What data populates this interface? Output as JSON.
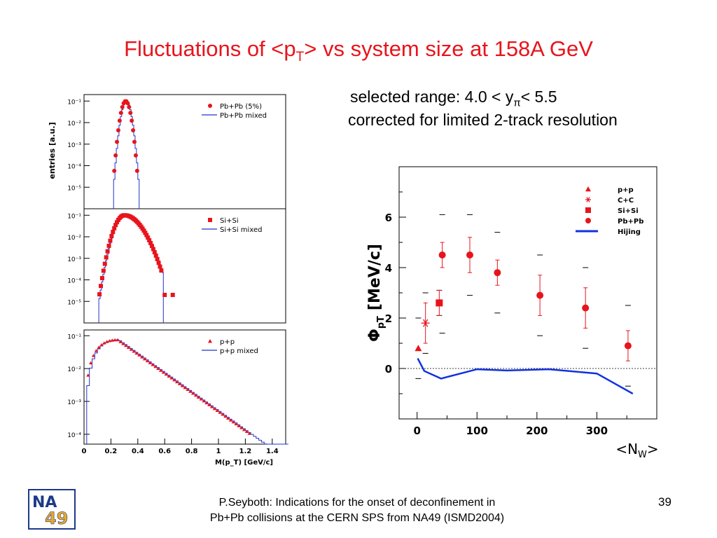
{
  "slide": {
    "title_main": "Fluctuations of <p",
    "title_sub": "T",
    "title_rest": "> vs system size at 158A GeV",
    "range_prefix": "selected range:  4.0 < y",
    "range_sub": "π",
    "range_suffix": "< 5.5",
    "correction_note": "corrected for limited 2-track resolution",
    "footer_line1": "P.Seyboth: Indications for the onset of deconfinement in",
    "footer_line2": "Pb+Pb collisions at the CERN SPS from NA49   (ISMD2004)",
    "page_number": "39",
    "logo_text_top": "NA",
    "logo_text_bottom": "49"
  },
  "colors": {
    "accent_red": "#e8141c",
    "hijing_blue": "#1133dd",
    "hist_blue": "#2233cc",
    "logo_blue": "#1d3a8a",
    "logo_gold": "#e6a92a"
  },
  "chart_data": [
    {
      "type": "scatter",
      "panel": "Pb+Pb",
      "ylabel": "entries [a.u.]",
      "yscale": "log",
      "ylim": [
        1e-06,
        0.2
      ],
      "xlim": [
        0,
        1.5
      ],
      "yticks": [
        "10⁻¹",
        "10⁻²",
        "10⁻³",
        "10⁻⁴",
        "10⁻⁵"
      ],
      "legend": [
        "Pb+Pb (5%)",
        "Pb+Pb mixed"
      ],
      "marker": "circle",
      "peak_x": 0.31,
      "sigma": 0.022
    },
    {
      "type": "scatter",
      "panel": "Si+Si",
      "yscale": "log",
      "ylim": [
        1e-06,
        0.2
      ],
      "xlim": [
        0,
        1.5
      ],
      "yticks": [
        "10⁻¹",
        "10⁻²",
        "10⁻³",
        "10⁻⁴",
        "10⁻⁵"
      ],
      "legend": [
        "Si+Si",
        "Si+Si mixed"
      ],
      "marker": "square",
      "peak_x": 0.3,
      "sigma": 0.05
    },
    {
      "type": "scatter",
      "panel": "p+p",
      "xlabel": "M(p_T) [GeV/c]",
      "yscale": "log",
      "ylim": [
        5e-05,
        0.15
      ],
      "xlim": [
        0,
        1.5
      ],
      "yticks": [
        "10⁻¹",
        "10⁻²",
        "10⁻³",
        "10⁻⁴"
      ],
      "xticks": [
        "0",
        "0.2",
        "0.4",
        "0.6",
        "0.8",
        "1",
        "1.2",
        "1.4"
      ],
      "legend": [
        "p+p",
        "p+p mixed"
      ],
      "marker": "triangle",
      "peak_x": 0.25
    },
    {
      "type": "scatter",
      "ylabel": "Φ",
      "ylabel_sub": "pT",
      "ylabel_unit": "[MeV/c]",
      "xlabel": "<N",
      "xlabel_sub": "W",
      "xlabel_close": ">",
      "xlim": [
        -30,
        400
      ],
      "ylim": [
        -2,
        8
      ],
      "xticks": [
        0,
        100,
        200,
        300
      ],
      "yticks": [
        0,
        2,
        4,
        6
      ],
      "legend_position": "top-right",
      "legend": [
        "p+p",
        "C+C",
        "Si+Si",
        "Pb+Pb",
        "Hijing"
      ],
      "series": [
        {
          "name": "p+p",
          "marker": "triangle",
          "points": [
            {
              "x": 2,
              "y": 0.8,
              "err": 0.0
            }
          ]
        },
        {
          "name": "C+C",
          "marker": "star",
          "points": [
            {
              "x": 14,
              "y": 1.8,
              "err": 0.8
            }
          ]
        },
        {
          "name": "Si+Si",
          "marker": "square",
          "points": [
            {
              "x": 37,
              "y": 2.6,
              "err": 0.5
            }
          ]
        },
        {
          "name": "Pb+Pb",
          "marker": "circle",
          "points": [
            {
              "x": 42,
              "y": 4.5,
              "err": 0.5
            },
            {
              "x": 88,
              "y": 4.5,
              "err": 0.7
            },
            {
              "x": 134,
              "y": 3.8,
              "err": 0.5
            },
            {
              "x": 205,
              "y": 2.9,
              "err": 0.8
            },
            {
              "x": 281,
              "y": 2.4,
              "err": 0.8
            },
            {
              "x": 352,
              "y": 0.9,
              "err": 0.6
            }
          ]
        },
        {
          "name": "Hijing",
          "line": [
            [
              1,
              0.4
            ],
            [
              12,
              -0.1
            ],
            [
              40,
              -0.4
            ],
            [
              100,
              -0.03
            ],
            [
              150,
              -0.08
            ],
            [
              220,
              -0.03
            ],
            [
              300,
              -0.2
            ],
            [
              360,
              -1.0
            ]
          ]
        }
      ],
      "systematic_bars": [
        {
          "x": 2,
          "upper": 2.0,
          "lower": -0.4
        },
        {
          "x": 14,
          "upper": 3.0,
          "lower": 0.6
        },
        {
          "x": 37,
          "upper": 3.1,
          "lower": 2.1
        },
        {
          "x": 42,
          "upper": 6.1,
          "lower": 1.4
        },
        {
          "x": 88,
          "upper": 6.1,
          "lower": 2.9
        },
        {
          "x": 134,
          "upper": 5.4,
          "lower": 2.2
        },
        {
          "x": 205,
          "upper": 4.5,
          "lower": 1.3
        },
        {
          "x": 281,
          "upper": 4.0,
          "lower": 0.8
        },
        {
          "x": 352,
          "upper": 2.5,
          "lower": -0.7
        }
      ]
    }
  ]
}
